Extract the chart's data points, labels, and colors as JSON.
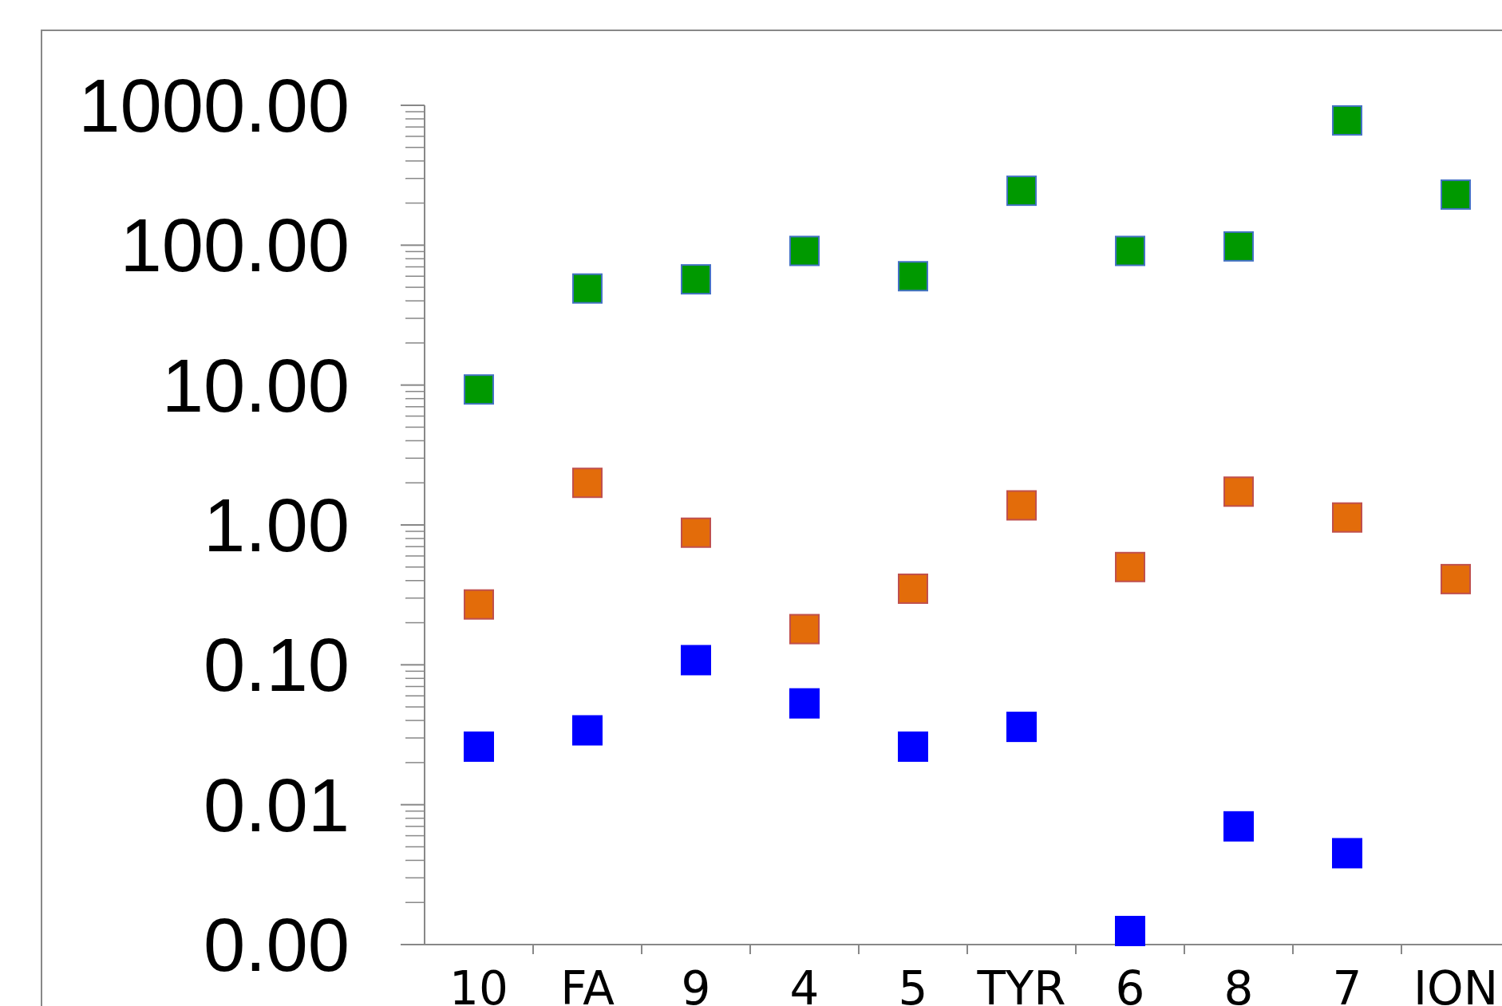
{
  "chart_data": {
    "type": "scatter",
    "log": true,
    "marker": "square",
    "grid": false,
    "categories": [
      "10",
      "FA",
      "9",
      "4",
      "5",
      "TYR",
      "6",
      "8",
      "7",
      "ION"
    ],
    "ylim": [
      0.001,
      1000
    ],
    "yticks": [
      {
        "value": 1000,
        "label": "1000.00"
      },
      {
        "value": 100,
        "label": "100.00"
      },
      {
        "value": 10,
        "label": "10.00"
      },
      {
        "value": 1,
        "label": "1.00"
      },
      {
        "value": 0.1,
        "label": "0.10"
      },
      {
        "value": 0.01,
        "label": "0.01"
      },
      {
        "value": 0.001,
        "label": "0.00"
      }
    ],
    "series": [
      {
        "color": "#009900",
        "values": [
          9.3,
          49,
          57,
          91,
          60,
          245,
          91,
          98,
          780,
          230
        ]
      },
      {
        "color": "#e36c0a",
        "values": [
          0.27,
          2.0,
          0.88,
          0.18,
          0.35,
          1.38,
          0.5,
          1.73,
          1.13,
          0.41
        ]
      },
      {
        "color": "#0000ff",
        "values": [
          0.026,
          0.034,
          0.108,
          0.053,
          0.026,
          0.036,
          0.00125,
          0.007,
          0.0045,
          null
        ]
      }
    ]
  }
}
